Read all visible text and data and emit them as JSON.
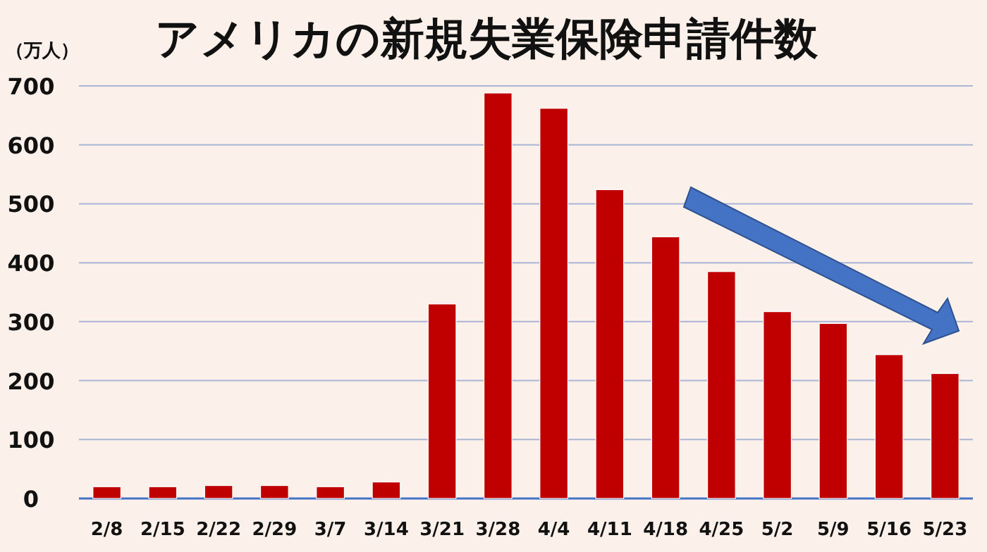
{
  "chart_data": {
    "type": "bar",
    "title": "アメリカの新規失業保険申請件数",
    "ylabel": "（万人）",
    "categories": [
      "2/8",
      "2/15",
      "2/22",
      "2/29",
      "3/7",
      "3/14",
      "3/21",
      "3/28",
      "4/4",
      "4/11",
      "4/18",
      "4/25",
      "5/2",
      "5/9",
      "5/16",
      "5/23"
    ],
    "values": [
      20,
      20,
      22,
      22,
      20,
      28,
      330,
      688,
      662,
      524,
      444,
      385,
      317,
      297,
      244,
      212
    ],
    "color": "#c00000",
    "ylim": [
      0,
      700
    ],
    "yticks": [
      0,
      100,
      200,
      300,
      400,
      500,
      600,
      700
    ],
    "grid": "y"
  }
}
